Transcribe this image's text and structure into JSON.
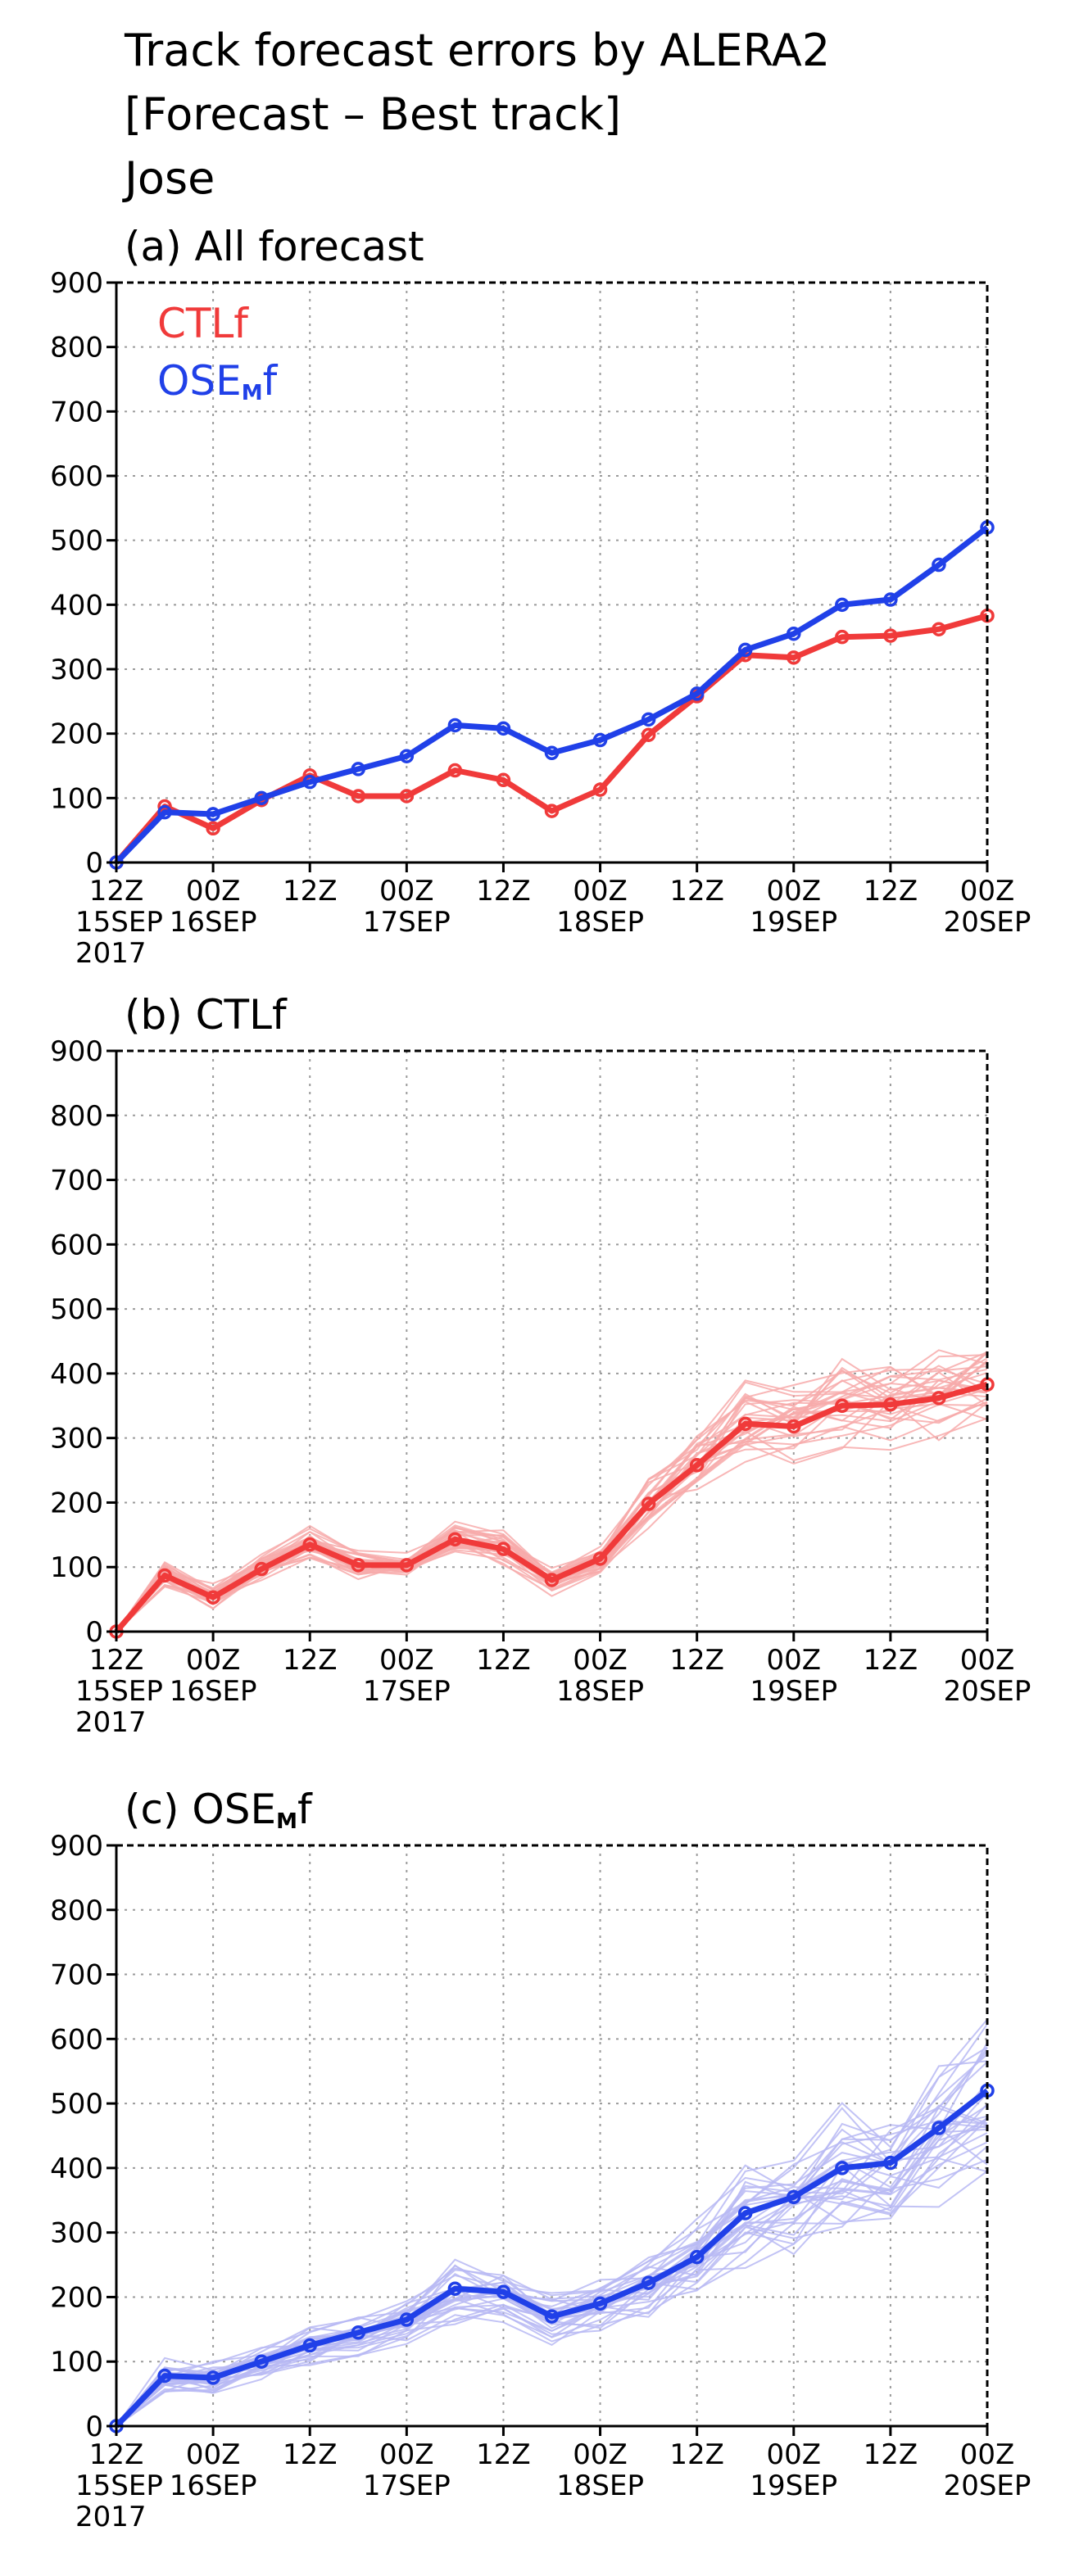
{
  "titles": [
    "Track forecast errors by ALERA2",
    "[Forecast – Best track]",
    "Jose"
  ],
  "x_hour_labels": [
    "12Z",
    "00Z",
    "12Z",
    "00Z",
    "12Z",
    "00Z",
    "12Z",
    "00Z",
    "12Z",
    "00Z"
  ],
  "x_date_labels": [
    "15SEP",
    "16SEP",
    "17SEP",
    "18SEP",
    "19SEP",
    "20SEP"
  ],
  "x_year_label": "2017",
  "colors": {
    "ctl": "#f03a3a",
    "ose": "#2040e8",
    "ctl_light": "#f7aaaa",
    "ose_light": "#b7b9f3"
  },
  "chart_data": [
    {
      "type": "line",
      "panel_label": "(a) All forecast",
      "ylim": [
        0,
        900
      ],
      "yticks": [
        0,
        100,
        200,
        300,
        400,
        500,
        600,
        700,
        800,
        900
      ],
      "x_steps": [
        0,
        0.5,
        1,
        1.5,
        2,
        2.5,
        3,
        3.5,
        4,
        4.5,
        5,
        5.5,
        6,
        6.5,
        7,
        7.5,
        8,
        8.5,
        9
      ],
      "grid": true,
      "legend_position": "top-left",
      "legend": [
        {
          "text": "CTLf",
          "base": "CTLf",
          "sub": "",
          "suffix": ""
        },
        {
          "text": "OSE_Mf",
          "base": "OSE",
          "sub": "M",
          "suffix": "f"
        }
      ],
      "series": [
        {
          "name": "CTLf",
          "color_key": "ctl",
          "values": [
            0,
            87,
            53,
            97,
            135,
            103,
            103,
            143,
            128,
            80,
            113,
            198,
            258,
            322,
            318,
            350,
            352,
            362,
            383
          ]
        },
        {
          "name": "OSE_Mf",
          "color_key": "ose",
          "values": [
            0,
            78,
            75,
            100,
            125,
            145,
            165,
            213,
            208,
            170,
            190,
            222,
            262,
            330,
            355,
            400,
            408,
            462,
            520
          ]
        }
      ]
    },
    {
      "type": "line",
      "panel_label": "(b) CTLf",
      "ylim": [
        0,
        900
      ],
      "yticks": [
        0,
        100,
        200,
        300,
        400,
        500,
        600,
        700,
        800,
        900
      ],
      "x_steps": [
        0,
        0.5,
        1,
        1.5,
        2,
        2.5,
        3,
        3.5,
        4,
        4.5,
        5,
        5.5,
        6,
        6.5,
        7,
        7.5,
        8,
        8.5,
        9
      ],
      "grid": true,
      "ensemble": {
        "members": 30,
        "spread": 0.22,
        "min_spread": 22,
        "color_key": "ctl_light"
      },
      "series": [
        {
          "name": "CTLf",
          "color_key": "ctl",
          "values": [
            0,
            87,
            53,
            97,
            135,
            103,
            103,
            143,
            128,
            80,
            113,
            198,
            258,
            322,
            318,
            350,
            352,
            362,
            383
          ]
        }
      ]
    },
    {
      "type": "line",
      "panel_label": "(c) OSE_Mf",
      "ylim": [
        0,
        900
      ],
      "yticks": [
        0,
        100,
        200,
        300,
        400,
        500,
        600,
        700,
        800,
        900
      ],
      "x_steps": [
        0,
        0.5,
        1,
        1.5,
        2,
        2.5,
        3,
        3.5,
        4,
        4.5,
        5,
        5.5,
        6,
        6.5,
        7,
        7.5,
        8,
        8.5,
        9
      ],
      "grid": true,
      "ensemble": {
        "members": 30,
        "spread": 0.24,
        "min_spread": 28,
        "color_key": "ose_light"
      },
      "series": [
        {
          "name": "OSE_Mf",
          "color_key": "ose",
          "values": [
            0,
            78,
            75,
            100,
            125,
            145,
            165,
            213,
            208,
            170,
            190,
            222,
            262,
            330,
            355,
            400,
            408,
            462,
            520
          ]
        }
      ]
    }
  ]
}
